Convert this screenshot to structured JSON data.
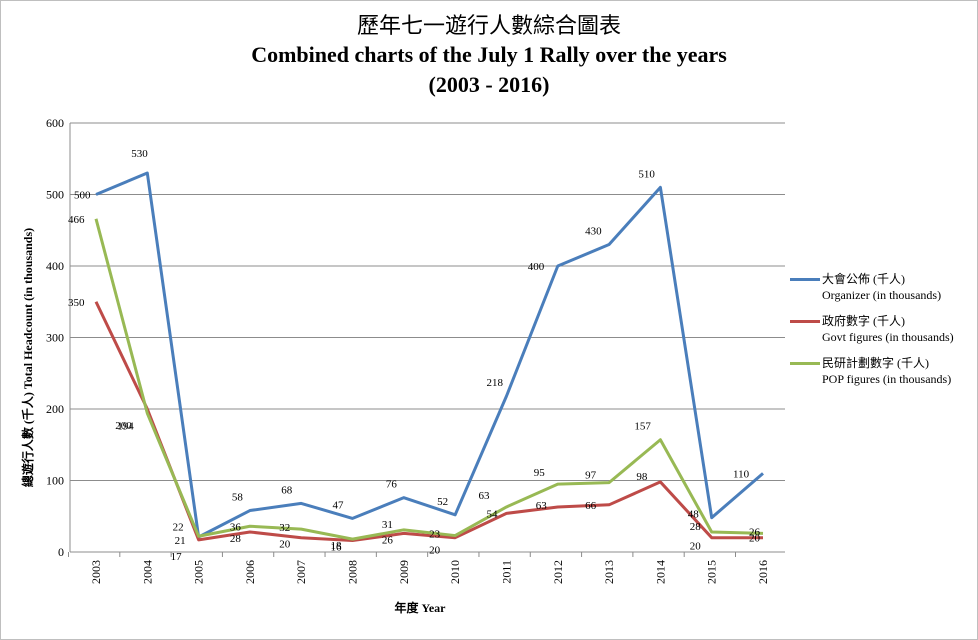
{
  "chart_data": {
    "type": "line",
    "title": "歷年七一遊行人數綜合圖表",
    "subtitle": "Combined charts of the July 1 Rally over the years",
    "subtitle2": "(2003 - 2016)",
    "xlabel": "年度 Year",
    "ylabel": "總遊行人數 (千人) Total Headcount (in thousands)",
    "ylim": [
      0,
      600
    ],
    "yticks": [
      "0",
      "100",
      "200",
      "300",
      "400",
      "500",
      "600"
    ],
    "grid": true,
    "legend_position": "right",
    "categories": [
      "2003",
      "2004",
      "2005",
      "2006",
      "2007",
      "2008",
      "2009",
      "2010",
      "2011",
      "2012",
      "2013",
      "2014",
      "2015",
      "2016"
    ],
    "series": [
      {
        "name": "大會公佈 (千人)",
        "name2": "Organizer (in thousands)",
        "color": "#4a7ebb",
        "values": [
          500,
          530,
          21,
          58,
          68,
          47,
          76,
          52,
          218,
          400,
          430,
          510,
          48,
          110
        ]
      },
      {
        "name": "政府數字 (千人)",
        "name2": "Govt figures (in thousands)",
        "color": "#be4b48",
        "values": [
          350,
          200,
          17,
          28,
          20,
          16,
          26,
          20,
          54,
          63,
          66,
          98,
          20,
          20
        ]
      },
      {
        "name": "民研計劃數字 (千人)",
        "name2": "POP figures (in thousands)",
        "color": "#98b954",
        "values": [
          466,
          194,
          22,
          36,
          32,
          18,
          31,
          23,
          63,
          95,
          97,
          157,
          28,
          26
        ]
      }
    ]
  }
}
